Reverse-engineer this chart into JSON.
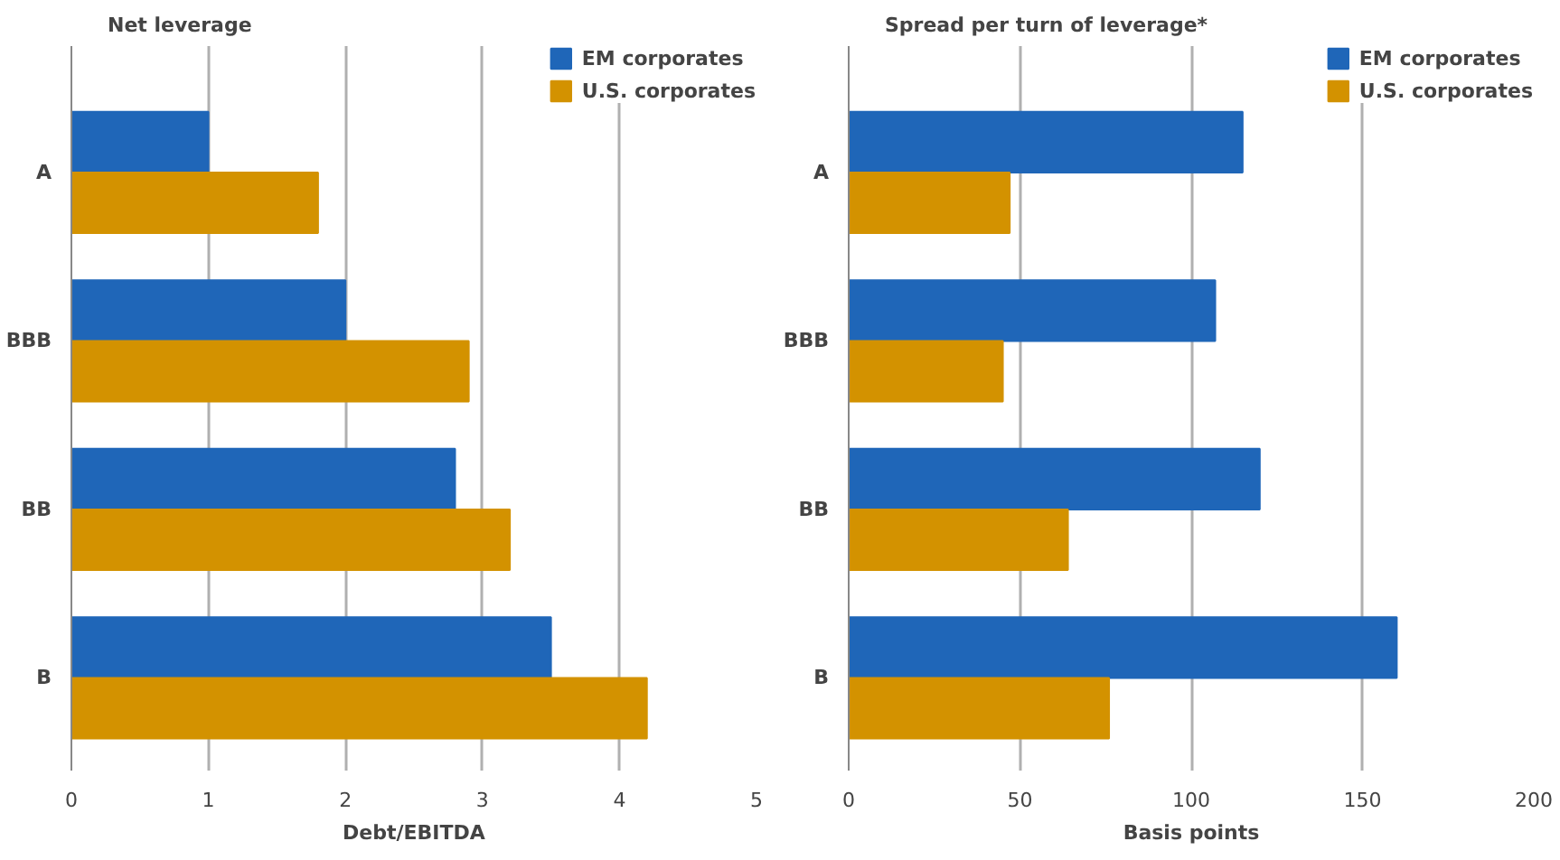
{
  "chart_data": [
    {
      "type": "bar",
      "orientation": "horizontal",
      "title": "Net leverage",
      "xlabel": "Debt/EBITDA",
      "categories": [
        "A",
        "BBB",
        "BB",
        "B"
      ],
      "series": [
        {
          "name": "EM corporates",
          "color": "#1f66b8",
          "values": [
            1.0,
            2.0,
            2.8,
            3.5
          ]
        },
        {
          "name": "U.S. corporates",
          "color": "#d39200",
          "values": [
            1.8,
            2.9,
            3.2,
            4.2
          ]
        }
      ],
      "xlim": [
        0,
        5
      ],
      "xticks": [
        0,
        1,
        2,
        3,
        4,
        5
      ],
      "grid": "x",
      "legend": "top right"
    },
    {
      "type": "bar",
      "orientation": "horizontal",
      "title": "Spread per turn of leverage*",
      "xlabel": "Basis points",
      "categories": [
        "A",
        "BBB",
        "BB",
        "B"
      ],
      "series": [
        {
          "name": "EM corporates",
          "color": "#1f66b8",
          "values": [
            115,
            107,
            120,
            160
          ]
        },
        {
          "name": "U.S. corporates",
          "color": "#d39200",
          "values": [
            47,
            45,
            64,
            76
          ]
        }
      ],
      "xlim": [
        0,
        200
      ],
      "xticks": [
        0,
        50,
        100,
        150,
        200
      ],
      "grid": "x",
      "legend": "top right"
    }
  ]
}
